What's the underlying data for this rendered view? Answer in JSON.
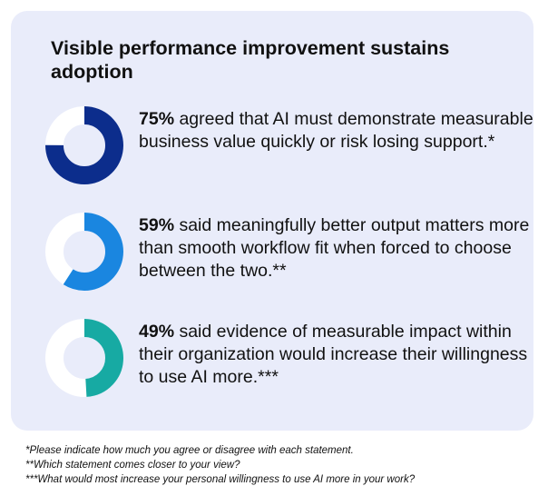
{
  "chart_data": {
    "type": "pie",
    "title": "Visible performance improvement sustains adoption",
    "stats": [
      {
        "value": 75,
        "percent_label": "75%",
        "text": " agreed that AI must demonstrate measurable business value quickly or risk losing support.*",
        "color": "#0c2d8c"
      },
      {
        "value": 59,
        "percent_label": "59%",
        "text": " said meaningfully better output matters more than smooth workflow fit when forced to choose between the two.**",
        "color": "#1a86e0"
      },
      {
        "value": 49,
        "percent_label": "49%",
        "text": " said evidence of measurable impact within their organization would increase their willingness to use AI more.***",
        "color": "#17aaa3"
      }
    ],
    "track_color": "#ffffff"
  },
  "footnotes": [
    "*Please indicate how much you agree or disagree with each statement.",
    "**Which statement comes closer to your view?",
    "***What would most increase your personal willingness to use AI more in your work?"
  ]
}
